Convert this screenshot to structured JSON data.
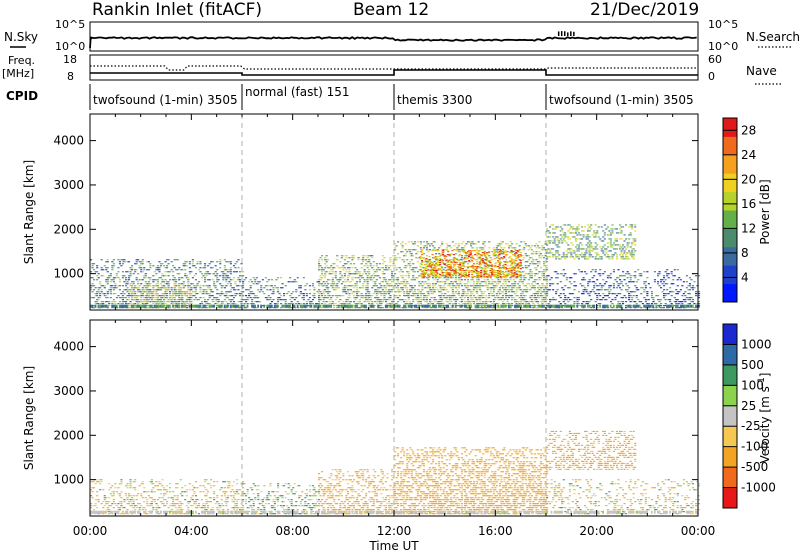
{
  "header": {
    "station": "Rankin Inlet (fitACF)",
    "beam": "Beam 12",
    "date": "21/Dec/2019"
  },
  "param_panels": {
    "nsky_label": "N.Sky",
    "nsky_ticks": [
      "10^5",
      "10^0"
    ],
    "nsearch_label": "N.Search",
    "nsearch_ticks": [
      "10^5",
      "10^0"
    ],
    "freq_label_1": "Freq.",
    "freq_label_2": "[MHz]",
    "freq_ticks": [
      "18",
      "8"
    ],
    "nave_label": "Nave",
    "nave_ticks": [
      "60",
      "0"
    ],
    "cpid_label": "CPID"
  },
  "cpid_segments": [
    {
      "label": "twofsound (1-min) 3505",
      "start_hour": 0
    },
    {
      "label": "normal (fast) 151",
      "start_hour": 6
    },
    {
      "label": "themis 3300",
      "start_hour": 12
    },
    {
      "label": "twofsound (1-min) 3505",
      "start_hour": 18
    }
  ],
  "colors": {
    "power": [
      "#0018ff",
      "#2040c8",
      "#3a6aa0",
      "#4b8c6e",
      "#63b04a",
      "#b8d22c",
      "#f0d020",
      "#f6a020",
      "#f06a1e",
      "#e01a18"
    ],
    "velocity": [
      "#e81818",
      "#f06a1e",
      "#f4a424",
      "#f6c852",
      "#c4c4c4",
      "#8cd24c",
      "#3c9a60",
      "#2e6aa6",
      "#1a2ad0"
    ]
  },
  "chart_data": [
    {
      "type": "heatmap",
      "title": "Power",
      "xlabel": "Time UT",
      "ylabel": "Slant Range [km]",
      "xlim": [
        0,
        24
      ],
      "ylim": [
        180,
        4600
      ],
      "x_ticks": [
        "00:00",
        "04:00",
        "08:00",
        "12:00",
        "16:00",
        "20:00",
        "00:00"
      ],
      "y_ticks": [
        1000,
        2000,
        3000,
        4000
      ],
      "colorbar": {
        "label": "Power [dB]",
        "ticks": [
          4,
          8,
          12,
          16,
          20,
          24,
          28
        ],
        "range": [
          0,
          30
        ]
      },
      "echo_regions": [
        {
          "t_start": 0.0,
          "t_end": 6.0,
          "range_low": 200,
          "range_high": 1300,
          "density": 0.45,
          "value_mean": 10
        },
        {
          "t_start": 1.5,
          "t_end": 4.0,
          "range_low": 200,
          "range_high": 750,
          "density": 0.55,
          "value_mean": 17
        },
        {
          "t_start": 6.0,
          "t_end": 9.0,
          "range_low": 200,
          "range_high": 900,
          "density": 0.35,
          "value_mean": 9
        },
        {
          "t_start": 9.0,
          "t_end": 12.0,
          "range_low": 200,
          "range_high": 1400,
          "density": 0.5,
          "value_mean": 14
        },
        {
          "t_start": 12.0,
          "t_end": 18.0,
          "range_low": 200,
          "range_high": 1700,
          "density": 0.55,
          "value_mean": 14
        },
        {
          "t_start": 13.0,
          "t_end": 17.0,
          "range_low": 900,
          "range_high": 1500,
          "density": 0.6,
          "value_mean": 22
        },
        {
          "t_start": 18.0,
          "t_end": 21.5,
          "range_low": 1300,
          "range_high": 2100,
          "density": 0.45,
          "value_mean": 13
        },
        {
          "t_start": 18.0,
          "t_end": 24.0,
          "range_low": 200,
          "range_high": 1100,
          "density": 0.3,
          "value_mean": 7
        }
      ]
    },
    {
      "type": "heatmap",
      "title": "Velocity",
      "xlabel": "Time UT",
      "ylabel": "Slant Range [km]",
      "xlim": [
        0,
        24
      ],
      "ylim": [
        180,
        4600
      ],
      "x_ticks": [
        "00:00",
        "04:00",
        "08:00",
        "12:00",
        "16:00",
        "20:00",
        "00:00"
      ],
      "y_ticks": [
        1000,
        2000,
        3000,
        4000
      ],
      "colorbar": {
        "label": "Velocity [m s-1]",
        "ticks": [
          "1000",
          "500",
          "100",
          "25",
          "-25",
          "-100",
          "-500",
          "-1000"
        ]
      },
      "echo_regions": [
        {
          "t_start": 0.0,
          "t_end": 6.0,
          "range_low": 200,
          "range_high": 1000,
          "density": 0.35,
          "value_mean": -60
        },
        {
          "t_start": 6.0,
          "t_end": 9.0,
          "range_low": 200,
          "range_high": 900,
          "density": 0.35,
          "value_mean": 60
        },
        {
          "t_start": 9.0,
          "t_end": 12.0,
          "range_low": 200,
          "range_high": 1200,
          "density": 0.45,
          "value_mean": -200
        },
        {
          "t_start": 12.0,
          "t_end": 18.0,
          "range_low": 200,
          "range_high": 1700,
          "density": 0.55,
          "value_mean": -250
        },
        {
          "t_start": 18.0,
          "t_end": 21.5,
          "range_low": 1200,
          "range_high": 2100,
          "density": 0.45,
          "value_mean": -200
        },
        {
          "t_start": 18.0,
          "t_end": 24.0,
          "range_low": 200,
          "range_high": 1000,
          "density": 0.25,
          "value_mean": -50
        }
      ]
    }
  ]
}
